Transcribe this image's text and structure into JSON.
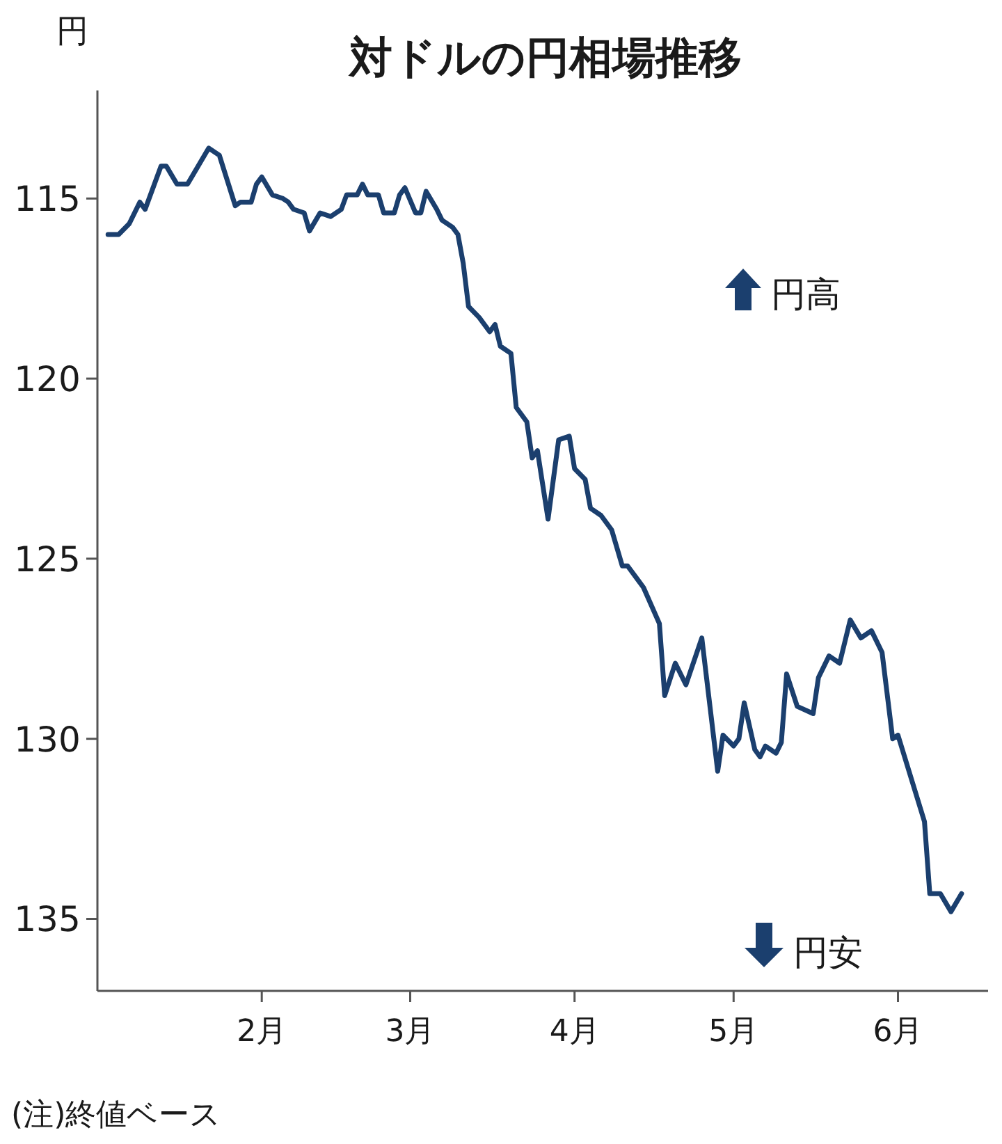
{
  "chart_data": {
    "type": "line",
    "title": "対ドルの円相場推移",
    "ylabel": "円",
    "annotations": [
      "円高",
      "円安",
      "(注)終値ベース"
    ],
    "x": [
      "--01-03",
      "--01-05",
      "--01-07",
      "--01-09",
      "--01-10",
      "--01-13",
      "--01-14",
      "--01-16",
      "--01-18",
      "--01-22",
      "--01-24",
      "--01-27",
      "--01-28",
      "--01-30",
      "--01-31",
      "--02-01",
      "--02-03",
      "--02-05",
      "--02-06",
      "--02-07",
      "--02-09",
      "--02-10",
      "--02-12",
      "--02-14",
      "--02-16",
      "--02-17",
      "--02-19",
      "--02-20",
      "--02-21",
      "--02-23",
      "--02-24",
      "--02-26",
      "--02-27",
      "--02-28",
      "--03-02",
      "--03-03",
      "--03-04",
      "--03-06",
      "--03-07",
      "--03-09",
      "--03-10",
      "--03-11",
      "--03-12",
      "--03-14",
      "--03-16",
      "--03-17",
      "--03-18",
      "--03-20",
      "--03-21",
      "--03-23",
      "--03-24",
      "--03-25",
      "--03-27",
      "--03-29",
      "--03-31",
      "--04-01",
      "--04-03",
      "--04-04",
      "--04-06",
      "--04-08",
      "--04-10",
      "--04-11",
      "--04-13",
      "--04-14",
      "--04-17",
      "--04-18",
      "--04-20",
      "--04-22",
      "--04-25",
      "--04-28",
      "--04-29",
      "--05-01",
      "--05-02",
      "--05-03",
      "--05-05",
      "--05-06",
      "--05-07",
      "--05-09",
      "--05-10",
      "--05-11",
      "--05-13",
      "--05-16",
      "--05-17",
      "--05-19",
      "--05-21",
      "--05-23",
      "--05-25",
      "--05-27",
      "--05-29",
      "--05-31",
      "--06-01",
      "--06-06",
      "--06-07",
      "--06-09",
      "--06-11",
      "--06-13"
    ],
    "series": [
      {
        "color": "#1b3f6e",
        "values": [
          116.0,
          116.0,
          115.7,
          115.1,
          115.3,
          114.1,
          114.1,
          114.6,
          114.6,
          113.6,
          113.8,
          115.2,
          115.1,
          115.1,
          114.6,
          114.4,
          114.9,
          115.0,
          115.1,
          115.3,
          115.4,
          115.9,
          115.4,
          115.5,
          115.3,
          114.9,
          114.9,
          114.6,
          114.9,
          114.9,
          115.4,
          115.4,
          114.9,
          114.7,
          115.4,
          115.4,
          114.8,
          115.3,
          115.6,
          115.8,
          116.0,
          116.8,
          118.0,
          118.3,
          118.7,
          118.5,
          119.1,
          119.3,
          120.8,
          121.2,
          122.2,
          122.0,
          123.9,
          121.7,
          121.6,
          122.5,
          122.8,
          123.6,
          123.8,
          124.2,
          125.2,
          125.2,
          125.6,
          125.8,
          126.8,
          128.8,
          127.9,
          128.5,
          127.2,
          130.9,
          129.9,
          130.2,
          130.0,
          129.0,
          130.3,
          130.5,
          130.2,
          130.4,
          130.1,
          128.2,
          129.1,
          129.3,
          128.3,
          127.7,
          127.9,
          126.7,
          127.2,
          127.0,
          127.6,
          130.0,
          129.9,
          132.3,
          134.3,
          134.3,
          134.8,
          134.3
        ]
      }
    ],
    "xlim": [
      "--01-01",
      "--06-18"
    ],
    "xticks": [
      {
        "value": "--02-01",
        "label": "2月"
      },
      {
        "value": "--03-01",
        "label": "3月"
      },
      {
        "value": "--04-01",
        "label": "4月"
      },
      {
        "value": "--05-01",
        "label": "5月"
      },
      {
        "value": "--06-01",
        "label": "6月"
      }
    ],
    "ylim": [
      137,
      112
    ],
    "yticks": [
      115,
      120,
      125,
      130,
      135
    ],
    "grid": false,
    "marker": "none",
    "line_style": "solid"
  }
}
